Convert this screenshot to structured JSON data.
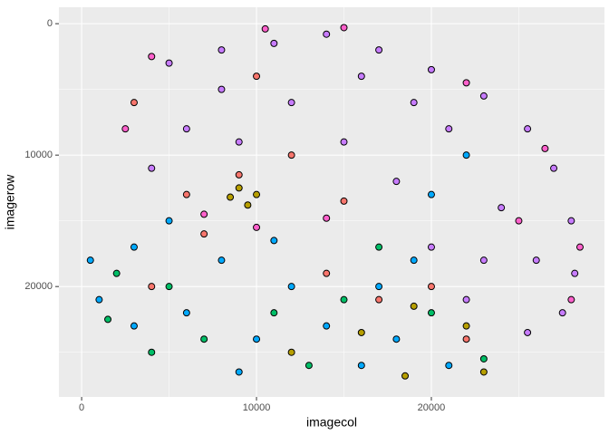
{
  "chart_data": {
    "type": "scatter",
    "x_label": "imagecol",
    "y_label": "imagerow",
    "xlim": [
      -1300,
      29900
    ],
    "ylim": [
      -1250,
      28400
    ],
    "y_reversed": true,
    "xticks": [
      0,
      10000,
      20000
    ],
    "yticks": [
      0,
      10000,
      20000
    ],
    "minor_xticks": [
      5000,
      15000,
      25000
    ],
    "minor_yticks": [
      5000,
      15000,
      25000
    ],
    "grid": true,
    "series": [
      {
        "color": "#C77CFF",
        "x": [
          5000,
          8000,
          11000,
          14000,
          17000,
          20000,
          23000,
          25500,
          27000,
          28000,
          28200,
          27500,
          25500,
          22000,
          20000,
          18000,
          15000,
          12000,
          8000,
          6000,
          4000,
          24000,
          21000,
          16000,
          26000,
          23000,
          19000,
          9000
        ],
        "y": [
          3000,
          2000,
          1500,
          800,
          2000,
          3500,
          5500,
          8000,
          11000,
          15000,
          19000,
          22000,
          23500,
          21000,
          17000,
          12000,
          9000,
          6000,
          5000,
          8000,
          11000,
          14000,
          8000,
          4000,
          18000,
          18000,
          6000,
          9000
        ]
      },
      {
        "color": "#F8766D",
        "x": [
          3000,
          9000,
          12000,
          6000,
          15000,
          20000,
          17000,
          10000,
          7000,
          14000,
          4000,
          22000
        ],
        "y": [
          6000,
          11500,
          10000,
          13000,
          13500,
          20000,
          21000,
          4000,
          16000,
          19000,
          20000,
          24000
        ]
      },
      {
        "color": "#FF61CC",
        "x": [
          2500,
          4000,
          10500,
          15000,
          22000,
          26500,
          28500,
          28000,
          10000,
          14000,
          7000,
          25000
        ],
        "y": [
          8000,
          2500,
          400,
          300,
          4500,
          9500,
          17000,
          21000,
          15500,
          14800,
          14500,
          15000
        ]
      },
      {
        "color": "#00A9FF",
        "x": [
          500,
          1000,
          3000,
          5000,
          6000,
          8000,
          10000,
          12000,
          14000,
          16000,
          18000,
          19000,
          21000,
          3000,
          9000,
          11000,
          17000,
          20000,
          22000
        ],
        "y": [
          18000,
          21000,
          17000,
          15000,
          22000,
          18000,
          24000,
          20000,
          23000,
          26000,
          24000,
          18000,
          26000,
          23000,
          26500,
          16500,
          20000,
          13000,
          10000
        ]
      },
      {
        "color": "#00BE67",
        "x": [
          2000,
          5000,
          7000,
          11000,
          13000,
          15000,
          17000,
          20000,
          23000,
          4000,
          1500
        ],
        "y": [
          19000,
          20000,
          24000,
          22000,
          26000,
          21000,
          17000,
          22000,
          25500,
          25000,
          22500
        ]
      },
      {
        "color": "#B79F00",
        "x": [
          9000,
          10000,
          9500,
          8500,
          16000,
          19000,
          22000,
          12000,
          18500,
          23000
        ],
        "y": [
          12500,
          13000,
          13800,
          13200,
          23500,
          21500,
          23000,
          25000,
          26800,
          26500
        ]
      }
    ]
  }
}
